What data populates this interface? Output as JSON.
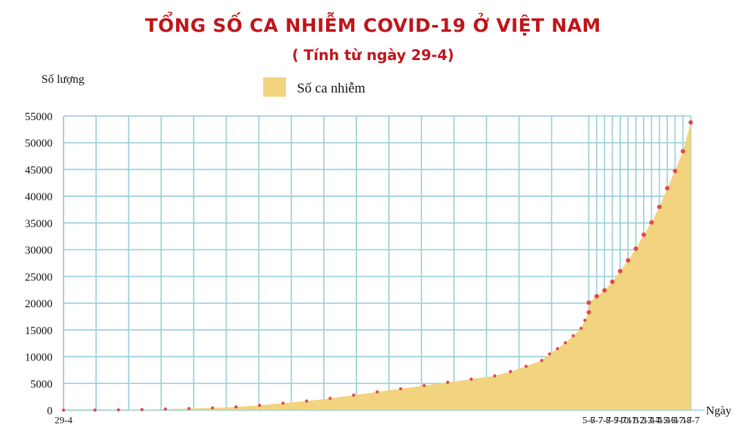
{
  "chart_data": {
    "type": "area",
    "title": "TỔNG SỐ CA NHIỄM COVID-19 Ở VIỆT NAM",
    "subtitle": "( Tính từ ngày 29-4)",
    "ylabel": "Số lượng",
    "xlabel": "Ngày",
    "ylim": [
      0,
      55000
    ],
    "yticks": [
      0,
      5000,
      10000,
      15000,
      20000,
      25000,
      30000,
      35000,
      40000,
      45000,
      50000,
      55000
    ],
    "grid": true,
    "legend_position": "top-center",
    "colors": {
      "title": "#c0151b",
      "area": "#f2d37e",
      "grid": "#9ccfd8",
      "point": "#e0484c"
    },
    "series": [
      {
        "name": "Số ca nhiễm",
        "x_labels": [
          "29-4",
          "5-7",
          "6-7",
          "7-7",
          "8-7",
          "9-7",
          "10-7",
          "11-7",
          "12-7",
          "13-7",
          "14-7",
          "15-7",
          "16-7",
          "17-7",
          "18-7"
        ],
        "x_day_index": [
          0,
          67,
          68,
          69,
          70,
          71,
          72,
          73,
          74,
          75,
          76,
          77,
          78,
          79,
          80
        ],
        "values": [
          0,
          20,
          60,
          110,
          200,
          300,
          420,
          600,
          900,
          1300,
          1700,
          2200,
          2800,
          3400,
          4000,
          4600,
          5200,
          5800,
          6400,
          7200,
          8200,
          9300,
          10500,
          11500,
          12600,
          13900,
          15300,
          16800,
          18300,
          20100,
          21300,
          22400,
          24000,
          26000,
          28000,
          30200,
          32800,
          35100,
          38000,
          41500,
          44700,
          48400,
          53800
        ],
        "day_index": [
          0,
          4,
          7,
          10,
          13,
          16,
          19,
          22,
          25,
          28,
          31,
          34,
          37,
          40,
          43,
          46,
          49,
          52,
          55,
          57,
          59,
          61,
          62,
          63,
          64,
          65,
          66,
          66.5,
          67,
          67,
          68,
          69,
          70,
          71,
          72,
          73,
          74,
          75,
          76,
          77,
          78,
          79,
          80
        ]
      }
    ]
  }
}
